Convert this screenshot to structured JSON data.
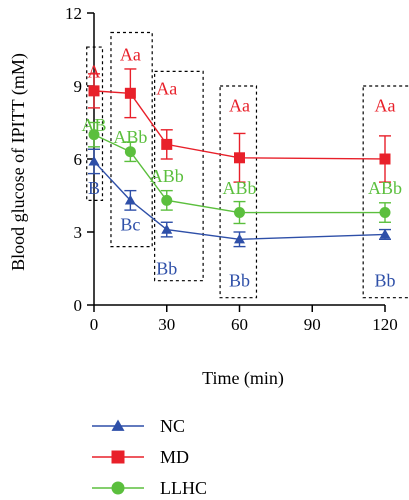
{
  "chart_data": {
    "type": "line",
    "xlabel": "Time (min)",
    "ylabel": "Blood glucose of IPITT (mM)",
    "xlim": [
      0,
      120
    ],
    "ylim": [
      0,
      12
    ],
    "xticks": [
      0,
      30,
      60,
      90,
      120
    ],
    "yticks": [
      0,
      3,
      6,
      9,
      12
    ],
    "legend": {
      "placement": "bottom-left"
    },
    "series": [
      {
        "name": "NC",
        "color": "#2e4fa8",
        "marker": "triangle",
        "x": [
          0,
          15,
          30,
          60,
          120
        ],
        "y": [
          5.9,
          4.3,
          3.1,
          2.7,
          2.9
        ],
        "err": [
          0.5,
          0.4,
          0.3,
          0.3,
          0.2
        ]
      },
      {
        "name": "MD",
        "color": "#e8202a",
        "marker": "square",
        "x": [
          0,
          15,
          30,
          60,
          120
        ],
        "y": [
          8.8,
          8.7,
          6.6,
          6.05,
          6.0
        ],
        "err": [
          0.7,
          1.0,
          0.6,
          1.0,
          0.95
        ]
      },
      {
        "name": "LLHC",
        "color": "#5bbf3d",
        "marker": "circle",
        "x": [
          0,
          15,
          30,
          60,
          120
        ],
        "y": [
          7.0,
          6.3,
          4.3,
          3.8,
          3.8
        ],
        "err": [
          0.5,
          0.4,
          0.4,
          0.45,
          0.4
        ]
      }
    ],
    "annotations": [
      {
        "x": 0,
        "y": 9.6,
        "text": "A",
        "color": "#e8202a"
      },
      {
        "x": 0,
        "y": 7.4,
        "text": "AB",
        "color": "#5bbf3d"
      },
      {
        "x": 0,
        "y": 4.8,
        "text": "B",
        "color": "#2e4fa8"
      },
      {
        "x": 15,
        "y": 10.3,
        "text": "Aa",
        "color": "#e8202a"
      },
      {
        "x": 15,
        "y": 6.9,
        "text": "ABb",
        "color": "#5bbf3d"
      },
      {
        "x": 15,
        "y": 3.3,
        "text": "Bc",
        "color": "#2e4fa8"
      },
      {
        "x": 30,
        "y": 8.9,
        "text": "Aa",
        "color": "#e8202a"
      },
      {
        "x": 30,
        "y": 5.3,
        "text": "ABb",
        "color": "#5bbf3d"
      },
      {
        "x": 30,
        "y": 1.5,
        "text": "Bb",
        "color": "#2e4fa8"
      },
      {
        "x": 60,
        "y": 8.2,
        "text": "Aa",
        "color": "#e8202a"
      },
      {
        "x": 60,
        "y": 4.8,
        "text": "ABb",
        "color": "#5bbf3d"
      },
      {
        "x": 60,
        "y": 1.0,
        "text": "Bb",
        "color": "#2e4fa8"
      },
      {
        "x": 120,
        "y": 8.2,
        "text": "Aa",
        "color": "#e8202a"
      },
      {
        "x": 120,
        "y": 4.8,
        "text": "ABb",
        "color": "#5bbf3d"
      },
      {
        "x": 120,
        "y": 1.0,
        "text": "Bb",
        "color": "#2e4fa8"
      }
    ],
    "boxes": [
      {
        "x0": -3,
        "x1": 3.5,
        "y0": 4.3,
        "y1": 10.6
      },
      {
        "x0": 7,
        "x1": 24,
        "y0": 2.4,
        "y1": 11.2
      },
      {
        "x0": 25,
        "x1": 45,
        "y0": 1.0,
        "y1": 9.6
      },
      {
        "x0": 52,
        "x1": 67,
        "y0": 0.3,
        "y1": 9.0
      },
      {
        "x0": 111,
        "x1": 131,
        "y0": 0.3,
        "y1": 9.0
      }
    ]
  }
}
